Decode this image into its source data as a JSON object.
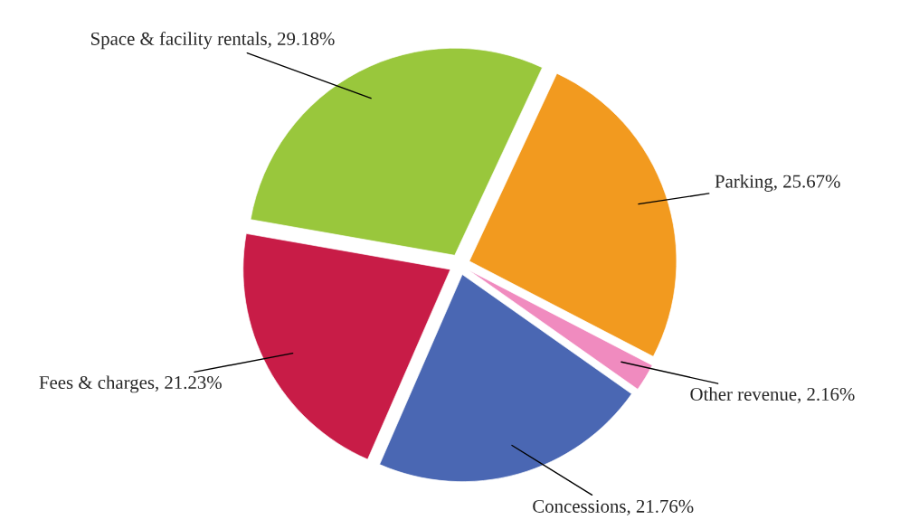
{
  "chart_data": {
    "type": "pie",
    "categories": [
      "Parking",
      "Other revenue",
      "Concessions",
      "Fees & charges",
      "Space & facility rentals"
    ],
    "values": [
      25.67,
      2.16,
      21.76,
      21.23,
      29.18
    ],
    "colors": [
      "#f29a1f",
      "#f08bbf",
      "#4a67b3",
      "#c81c47",
      "#99c73c"
    ],
    "value_labels": [
      "25.67%",
      "2.16%",
      "21.76%",
      "21.23%",
      "29.18%"
    ],
    "legend": false
  }
}
